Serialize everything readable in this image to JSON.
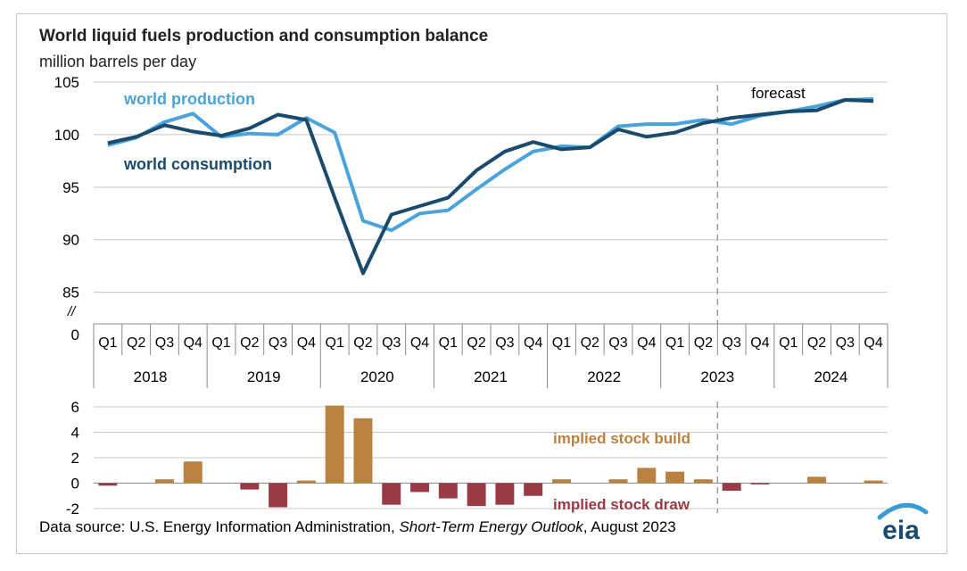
{
  "title": "World liquid fuels production and consumption balance",
  "subtitle": "million barrels per day",
  "source": {
    "prefix": "Data source: U.S. Energy Information Administration, ",
    "publication": "Short-Term Energy Outlook",
    "suffix": ", August 2023"
  },
  "logo_text": "eia",
  "chart_data": [
    {
      "type": "line",
      "x_quarters": [
        "Q1",
        "Q2",
        "Q3",
        "Q4",
        "Q1",
        "Q2",
        "Q3",
        "Q4",
        "Q1",
        "Q2",
        "Q3",
        "Q4",
        "Q1",
        "Q2",
        "Q3",
        "Q4",
        "Q1",
        "Q2",
        "Q3",
        "Q4",
        "Q1",
        "Q2",
        "Q3",
        "Q4",
        "Q1",
        "Q2",
        "Q3",
        "Q4"
      ],
      "x_years": [
        "2018",
        "2019",
        "2020",
        "2021",
        "2022",
        "2023",
        "2024"
      ],
      "yticks": [
        "105",
        "100",
        "95",
        "90",
        "85"
      ],
      "y_zero_label": "0",
      "axis_break": "//",
      "ylim": [
        82,
        105
      ],
      "forecast_label": "forecast",
      "forecast_start_index": 21.5,
      "series": [
        {
          "name": "world production",
          "color": "#4aa3dc",
          "values": [
            99.0,
            99.7,
            101.2,
            102.0,
            99.8,
            100.1,
            100.0,
            101.6,
            100.2,
            91.8,
            90.9,
            92.5,
            92.8,
            94.8,
            96.7,
            98.4,
            98.9,
            98.8,
            100.8,
            101.0,
            101.0,
            101.4,
            101.0,
            101.8,
            102.2,
            102.7,
            103.3,
            103.4
          ]
        },
        {
          "name": "world consumption",
          "color": "#1a4a6c",
          "values": [
            99.2,
            99.8,
            100.9,
            100.3,
            99.9,
            100.6,
            101.9,
            101.4,
            94.0,
            86.8,
            92.4,
            93.2,
            94.0,
            96.6,
            98.4,
            99.3,
            98.6,
            98.8,
            100.5,
            99.8,
            100.2,
            101.1,
            101.6,
            101.9,
            102.2,
            102.3,
            103.3,
            103.2
          ]
        }
      ]
    },
    {
      "type": "bar",
      "yticks": [
        "6",
        "4",
        "2",
        "0",
        "-2"
      ],
      "ylim": [
        -2,
        6
      ],
      "labels": {
        "build": "implied stock build",
        "draw": "implied stock draw"
      },
      "colors": {
        "build": "#b98240",
        "draw": "#9a3a44"
      },
      "values": [
        -0.2,
        0.0,
        0.3,
        1.7,
        0.0,
        -0.5,
        -1.9,
        0.2,
        6.1,
        5.1,
        -1.7,
        -0.7,
        -1.2,
        -1.8,
        -1.7,
        -1.0,
        0.3,
        0.0,
        0.3,
        1.2,
        0.9,
        0.3,
        -0.6,
        -0.1,
        0.0,
        0.5,
        0.0,
        0.2
      ]
    }
  ]
}
